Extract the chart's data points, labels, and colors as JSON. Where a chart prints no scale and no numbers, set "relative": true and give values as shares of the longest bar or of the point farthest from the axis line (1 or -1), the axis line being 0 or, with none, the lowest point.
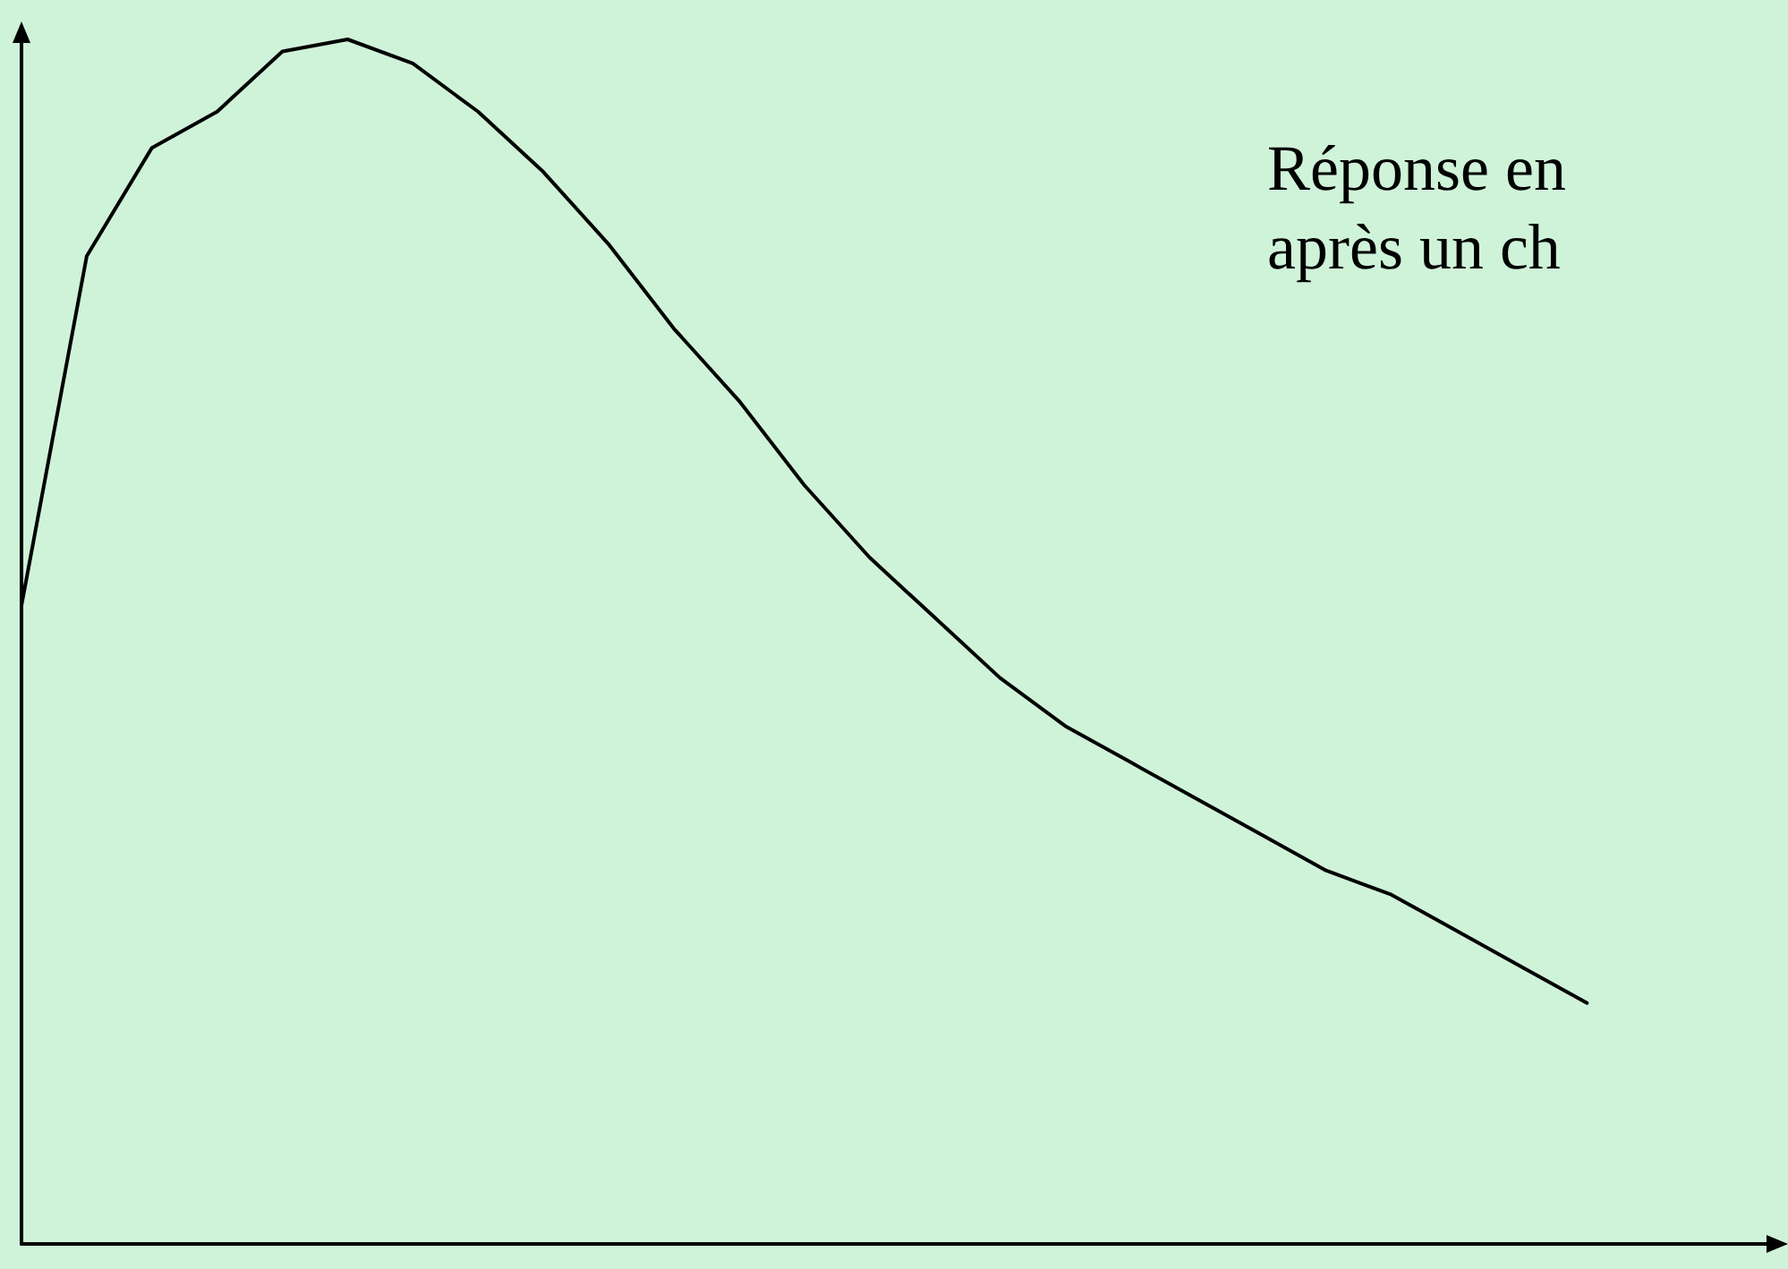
{
  "chart_data": {
    "type": "line",
    "relative": true,
    "color": "#000000",
    "annotations": [
      "Réponse en\naprès un ch"
    ],
    "categories": [
      null,
      null,
      null,
      null,
      null,
      null,
      null,
      null,
      null,
      null,
      null,
      null,
      null,
      null,
      null,
      null,
      null,
      null,
      null,
      null,
      null,
      null,
      null,
      null,
      null,
      null,
      null,
      null
    ],
    "values": [
      0.53,
      0.82,
      0.91,
      0.94,
      0.99,
      1,
      0.98,
      0.94,
      0.89,
      0.83,
      0.76,
      0.7,
      0.63,
      0.57,
      0.52,
      0.47,
      0.43,
      0.4,
      0.37,
      0.34,
      0.31,
      0.29,
      0.26,
      0.23,
      0.2,
      null,
      null,
      null
    ],
    "grid": false,
    "marker": "none",
    "line_style": "solid"
  }
}
